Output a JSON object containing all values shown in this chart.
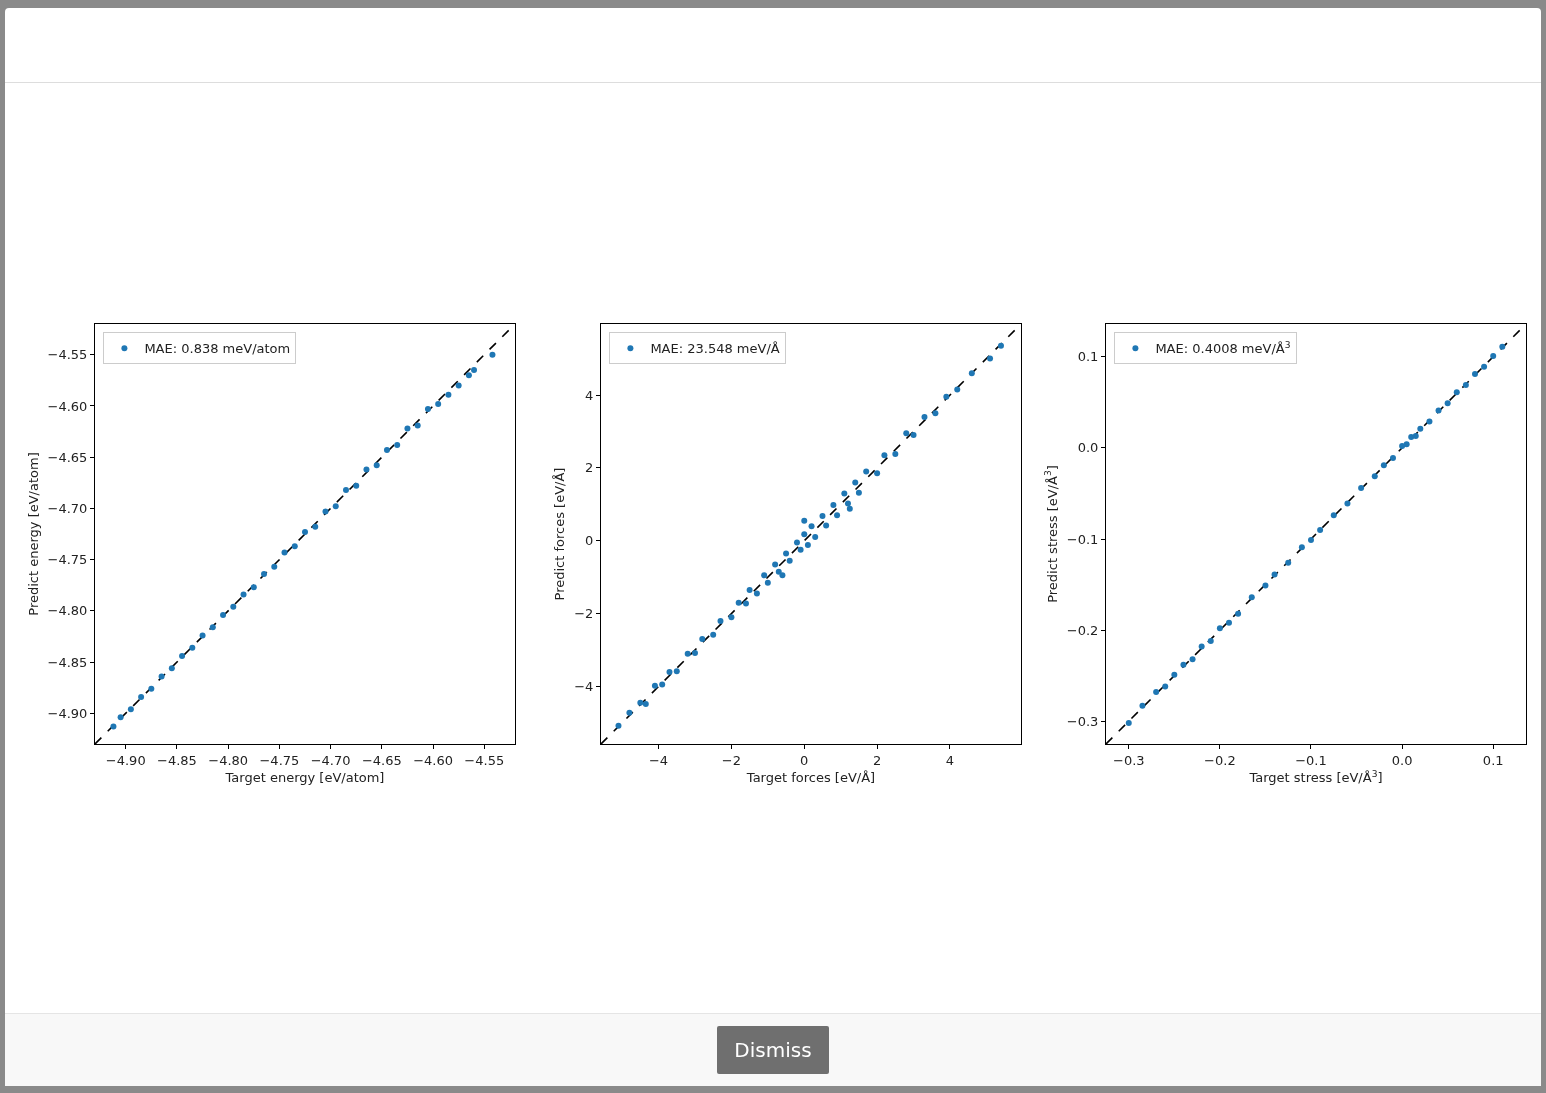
{
  "chart_data": [
    {
      "type": "scatter",
      "xlabel": "Target energy [eV/atom]",
      "ylabel": "Predict energy [eV/atom]",
      "legend": "top left",
      "grid": false,
      "xlim": [
        -4.93,
        -4.52
      ],
      "ylim": [
        -4.93,
        -4.52
      ],
      "xticks": [
        {
          "value": -4.9,
          "label": "−4.90"
        },
        {
          "value": -4.85,
          "label": "−4.85"
        },
        {
          "value": -4.8,
          "label": "−4.80"
        },
        {
          "value": -4.75,
          "label": "−4.75"
        },
        {
          "value": -4.7,
          "label": "−4.70"
        },
        {
          "value": -4.65,
          "label": "−4.65"
        },
        {
          "value": -4.6,
          "label": "−4.60"
        },
        {
          "value": -4.55,
          "label": "−4.55"
        }
      ],
      "yticks": [
        {
          "value": -4.9,
          "label": "−4.90"
        },
        {
          "value": -4.85,
          "label": "−4.85"
        },
        {
          "value": -4.8,
          "label": "−4.80"
        },
        {
          "value": -4.75,
          "label": "−4.75"
        },
        {
          "value": -4.7,
          "label": "−4.70"
        },
        {
          "value": -4.65,
          "label": "−4.65"
        },
        {
          "value": -4.6,
          "label": "−4.60"
        },
        {
          "value": -4.55,
          "label": "−4.55"
        }
      ],
      "series": [
        {
          "name": "MAE: 0.838 meV/atom",
          "marker": "circle",
          "color": "#1f77b4",
          "x": [
            -4.912,
            -4.905,
            -4.895,
            -4.885,
            -4.875,
            -4.865,
            -4.855,
            -4.845,
            -4.835,
            -4.825,
            -4.815,
            -4.805,
            -4.795,
            -4.785,
            -4.775,
            -4.765,
            -4.755,
            -4.745,
            -4.735,
            -4.725,
            -4.715,
            -4.705,
            -4.695,
            -4.685,
            -4.675,
            -4.665,
            -4.655,
            -4.645,
            -4.635,
            -4.625,
            -4.615,
            -4.605,
            -4.595,
            -4.585,
            -4.575,
            -4.565,
            -4.56,
            -4.542
          ],
          "values": [
            -4.913,
            -4.904,
            -4.896,
            -4.884,
            -4.876,
            -4.864,
            -4.856,
            -4.844,
            -4.836,
            -4.824,
            -4.816,
            -4.804,
            -4.796,
            -4.784,
            -4.777,
            -4.764,
            -4.757,
            -4.743,
            -4.737,
            -4.723,
            -4.718,
            -4.703,
            -4.698,
            -4.682,
            -4.678,
            -4.662,
            -4.658,
            -4.643,
            -4.638,
            -4.622,
            -4.619,
            -4.603,
            -4.598,
            -4.589,
            -4.58,
            -4.57,
            -4.565,
            -4.55
          ]
        },
        {
          "type": "line",
          "line_style": "dashed",
          "marker": "none",
          "color": "#000000",
          "x": [
            -4.93,
            -4.52
          ],
          "values": [
            -4.93,
            -4.52
          ]
        }
      ]
    },
    {
      "type": "scatter",
      "xlabel": "Target forces [eV/Å]",
      "ylabel": "Predict forces [eV/Å]",
      "legend": "top left",
      "grid": false,
      "xlim": [
        -5.58,
        5.95
      ],
      "ylim": [
        -5.58,
        5.95
      ],
      "xticks": [
        {
          "value": -4,
          "label": "−4"
        },
        {
          "value": -2,
          "label": "−2"
        },
        0,
        2,
        4
      ],
      "yticks": [
        {
          "value": -4,
          "label": "−4"
        },
        {
          "value": -2,
          "label": "−2"
        },
        0,
        2,
        4
      ],
      "series": [
        {
          "name": "MAE: 23.548 meV/Å",
          "marker": "circle",
          "color": "#1f77b4",
          "x": [
            -5.1,
            -4.8,
            -4.5,
            -4.35,
            -4.1,
            -3.9,
            -3.7,
            -3.5,
            -3.2,
            -3.0,
            -2.8,
            -2.5,
            -2.3,
            -2.0,
            -1.8,
            -1.6,
            -1.5,
            -1.3,
            -1.1,
            -1.0,
            -0.8,
            -0.7,
            -0.5,
            -0.4,
            -0.2,
            -0.1,
            0.0,
            0.1,
            0.2,
            0.3,
            0.5,
            0.6,
            0.8,
            0.9,
            1.1,
            1.2,
            1.4,
            1.5,
            1.7,
            2.0,
            2.2,
            2.5,
            2.8,
            3.0,
            3.3,
            3.6,
            3.9,
            4.2,
            4.6,
            5.1,
            5.4,
            1.25,
            -0.6,
            0.0
          ],
          "values": [
            -5.08,
            -4.72,
            -4.45,
            -4.48,
            -3.98,
            -3.95,
            -3.6,
            -3.58,
            -3.1,
            -3.08,
            -2.7,
            -2.58,
            -2.2,
            -2.1,
            -1.7,
            -1.72,
            -1.35,
            -1.45,
            -0.95,
            -1.15,
            -0.65,
            -0.85,
            -0.35,
            -0.55,
            -0.05,
            -0.25,
            0.18,
            -0.12,
            0.4,
            0.1,
            0.68,
            0.42,
            0.98,
            0.7,
            1.3,
            1.02,
            1.6,
            1.32,
            1.9,
            1.85,
            2.35,
            2.38,
            2.95,
            2.9,
            3.4,
            3.5,
            3.95,
            4.15,
            4.6,
            5.0,
            5.35,
            0.88,
            -0.95,
            0.55
          ]
        },
        {
          "type": "line",
          "line_style": "dashed",
          "marker": "none",
          "color": "#000000",
          "x": [
            -5.58,
            5.95
          ],
          "values": [
            -5.58,
            5.95
          ]
        }
      ]
    },
    {
      "type": "scatter",
      "xlabel": "Target stress [eV/Å$^{3}$]",
      "ylabel": "Predict stress [eV/Å$^{3}$]",
      "legend": "top left",
      "grid": false,
      "xlim": [
        -0.325,
        0.136
      ],
      "ylim": [
        -0.325,
        0.136
      ],
      "xticks": [
        {
          "value": -0.3,
          "label": "−0.3"
        },
        {
          "value": -0.2,
          "label": "−0.2"
        },
        {
          "value": -0.1,
          "label": "−0.1"
        },
        {
          "value": 0,
          "label": "0.0"
        },
        0.1
      ],
      "yticks": [
        {
          "value": -0.3,
          "label": "−0.3"
        },
        {
          "value": -0.2,
          "label": "−0.2"
        },
        {
          "value": -0.1,
          "label": "−0.1"
        },
        {
          "value": 0,
          "label": "0.0"
        },
        0.1
      ],
      "annotations": [
        "Dismiss"
      ],
      "series": [
        {
          "name": "MAE: 0.4008 meV/Å$^{3}$",
          "marker": "circle",
          "color": "#1f77b4",
          "x": [
            -0.3,
            -0.285,
            -0.27,
            -0.26,
            -0.25,
            -0.24,
            -0.23,
            -0.22,
            -0.21,
            -0.2,
            -0.19,
            -0.18,
            -0.165,
            -0.15,
            -0.14,
            -0.125,
            -0.11,
            -0.1,
            -0.09,
            -0.075,
            -0.06,
            -0.045,
            -0.03,
            -0.02,
            -0.01,
            0.0,
            0.005,
            0.01,
            0.015,
            0.02,
            0.03,
            0.04,
            0.05,
            0.06,
            0.07,
            0.08,
            0.09,
            0.1,
            0.11
          ],
          "values": [
            -0.302,
            -0.283,
            -0.268,
            -0.262,
            -0.249,
            -0.238,
            -0.232,
            -0.218,
            -0.212,
            -0.198,
            -0.192,
            -0.182,
            -0.164,
            -0.151,
            -0.139,
            -0.126,
            -0.109,
            -0.101,
            -0.09,
            -0.074,
            -0.061,
            -0.044,
            -0.031,
            -0.019,
            -0.011,
            0.002,
            0.004,
            0.012,
            0.013,
            0.021,
            0.029,
            0.041,
            0.049,
            0.061,
            0.069,
            0.081,
            0.089,
            0.101,
            0.111
          ]
        },
        {
          "type": "line",
          "line_style": "dashed",
          "marker": "none",
          "color": "#000000",
          "x": [
            -0.325,
            0.136
          ],
          "values": [
            -0.325,
            0.136
          ]
        }
      ]
    }
  ]
}
